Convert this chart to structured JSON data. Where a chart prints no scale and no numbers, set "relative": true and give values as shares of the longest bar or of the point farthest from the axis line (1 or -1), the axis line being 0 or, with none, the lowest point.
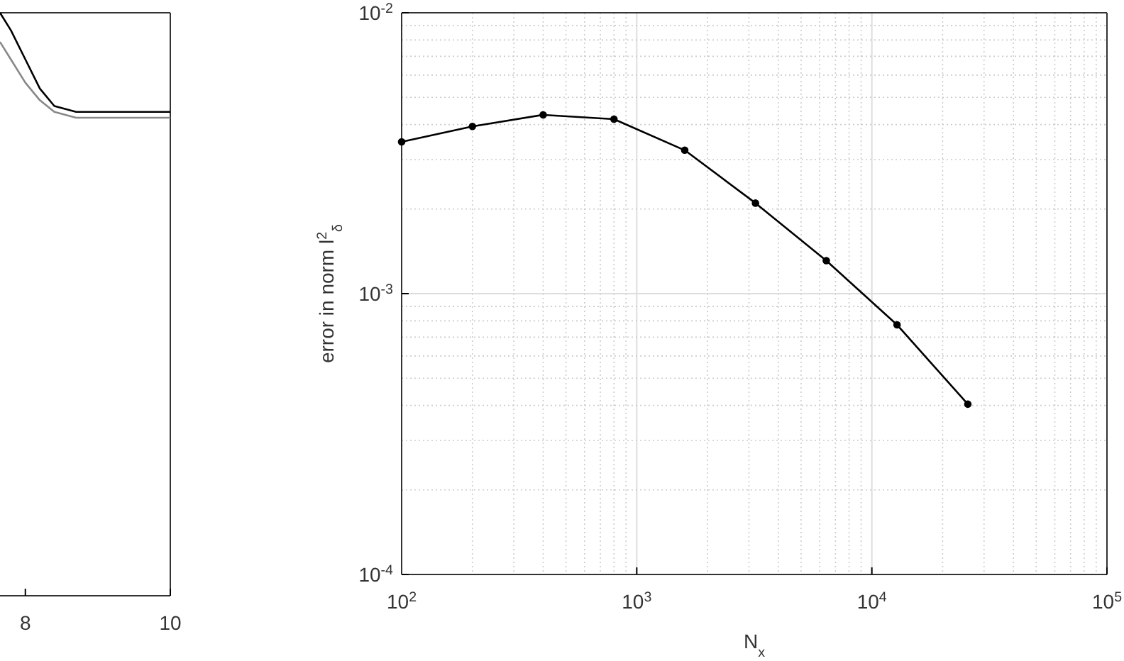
{
  "chart_data": [
    {
      "type": "line",
      "relative": true,
      "tick_labels": "x",
      "xlim": [
        7.65,
        10
      ],
      "xticks": [
        8,
        10
      ],
      "x": [
        7.65,
        7.8,
        8,
        8.2,
        8.4,
        8.7,
        9,
        9.5,
        10
      ],
      "series": [
        {
          "color": "#000000",
          "values": [
            1,
            0.97,
            0.92,
            0.87,
            0.84,
            0.83,
            0.83,
            0.83,
            0.83
          ]
        },
        {
          "color": "#888888",
          "values": [
            0.95,
            0.92,
            0.88,
            0.85,
            0.83,
            0.82,
            0.82,
            0.82,
            0.82
          ]
        }
      ]
    },
    {
      "type": "line",
      "log": "xy",
      "grid": true,
      "marker": "circle",
      "xlabel": "N$_{x}$",
      "ylabel": "error in norm l$^{2}$$_{δ}$",
      "xlim": [
        100,
        100000
      ],
      "ylim": [
        0.0001,
        0.01
      ],
      "xticks": [
        {
          "value": 100,
          "label": "10$^{2}$"
        },
        {
          "value": 1000,
          "label": "10$^{3}$"
        },
        {
          "value": 10000,
          "label": "10$^{4}$"
        },
        {
          "value": 100000,
          "label": "10$^{5}$"
        }
      ],
      "yticks": [
        {
          "value": 0.0001,
          "label": "10$^{-4}$"
        },
        {
          "value": 0.001,
          "label": "10$^{-3}$"
        },
        {
          "value": 0.01,
          "label": "10$^{-2}$"
        }
      ],
      "x": [
        100,
        200,
        400,
        800,
        1600,
        3200,
        6400,
        12800,
        25600
      ],
      "series": [
        {
          "color": "#000000",
          "values": [
            0.00347,
            0.00394,
            0.00433,
            0.00418,
            0.00324,
            0.0021,
            0.00131,
            0.000774,
            0.000404
          ]
        }
      ]
    }
  ]
}
